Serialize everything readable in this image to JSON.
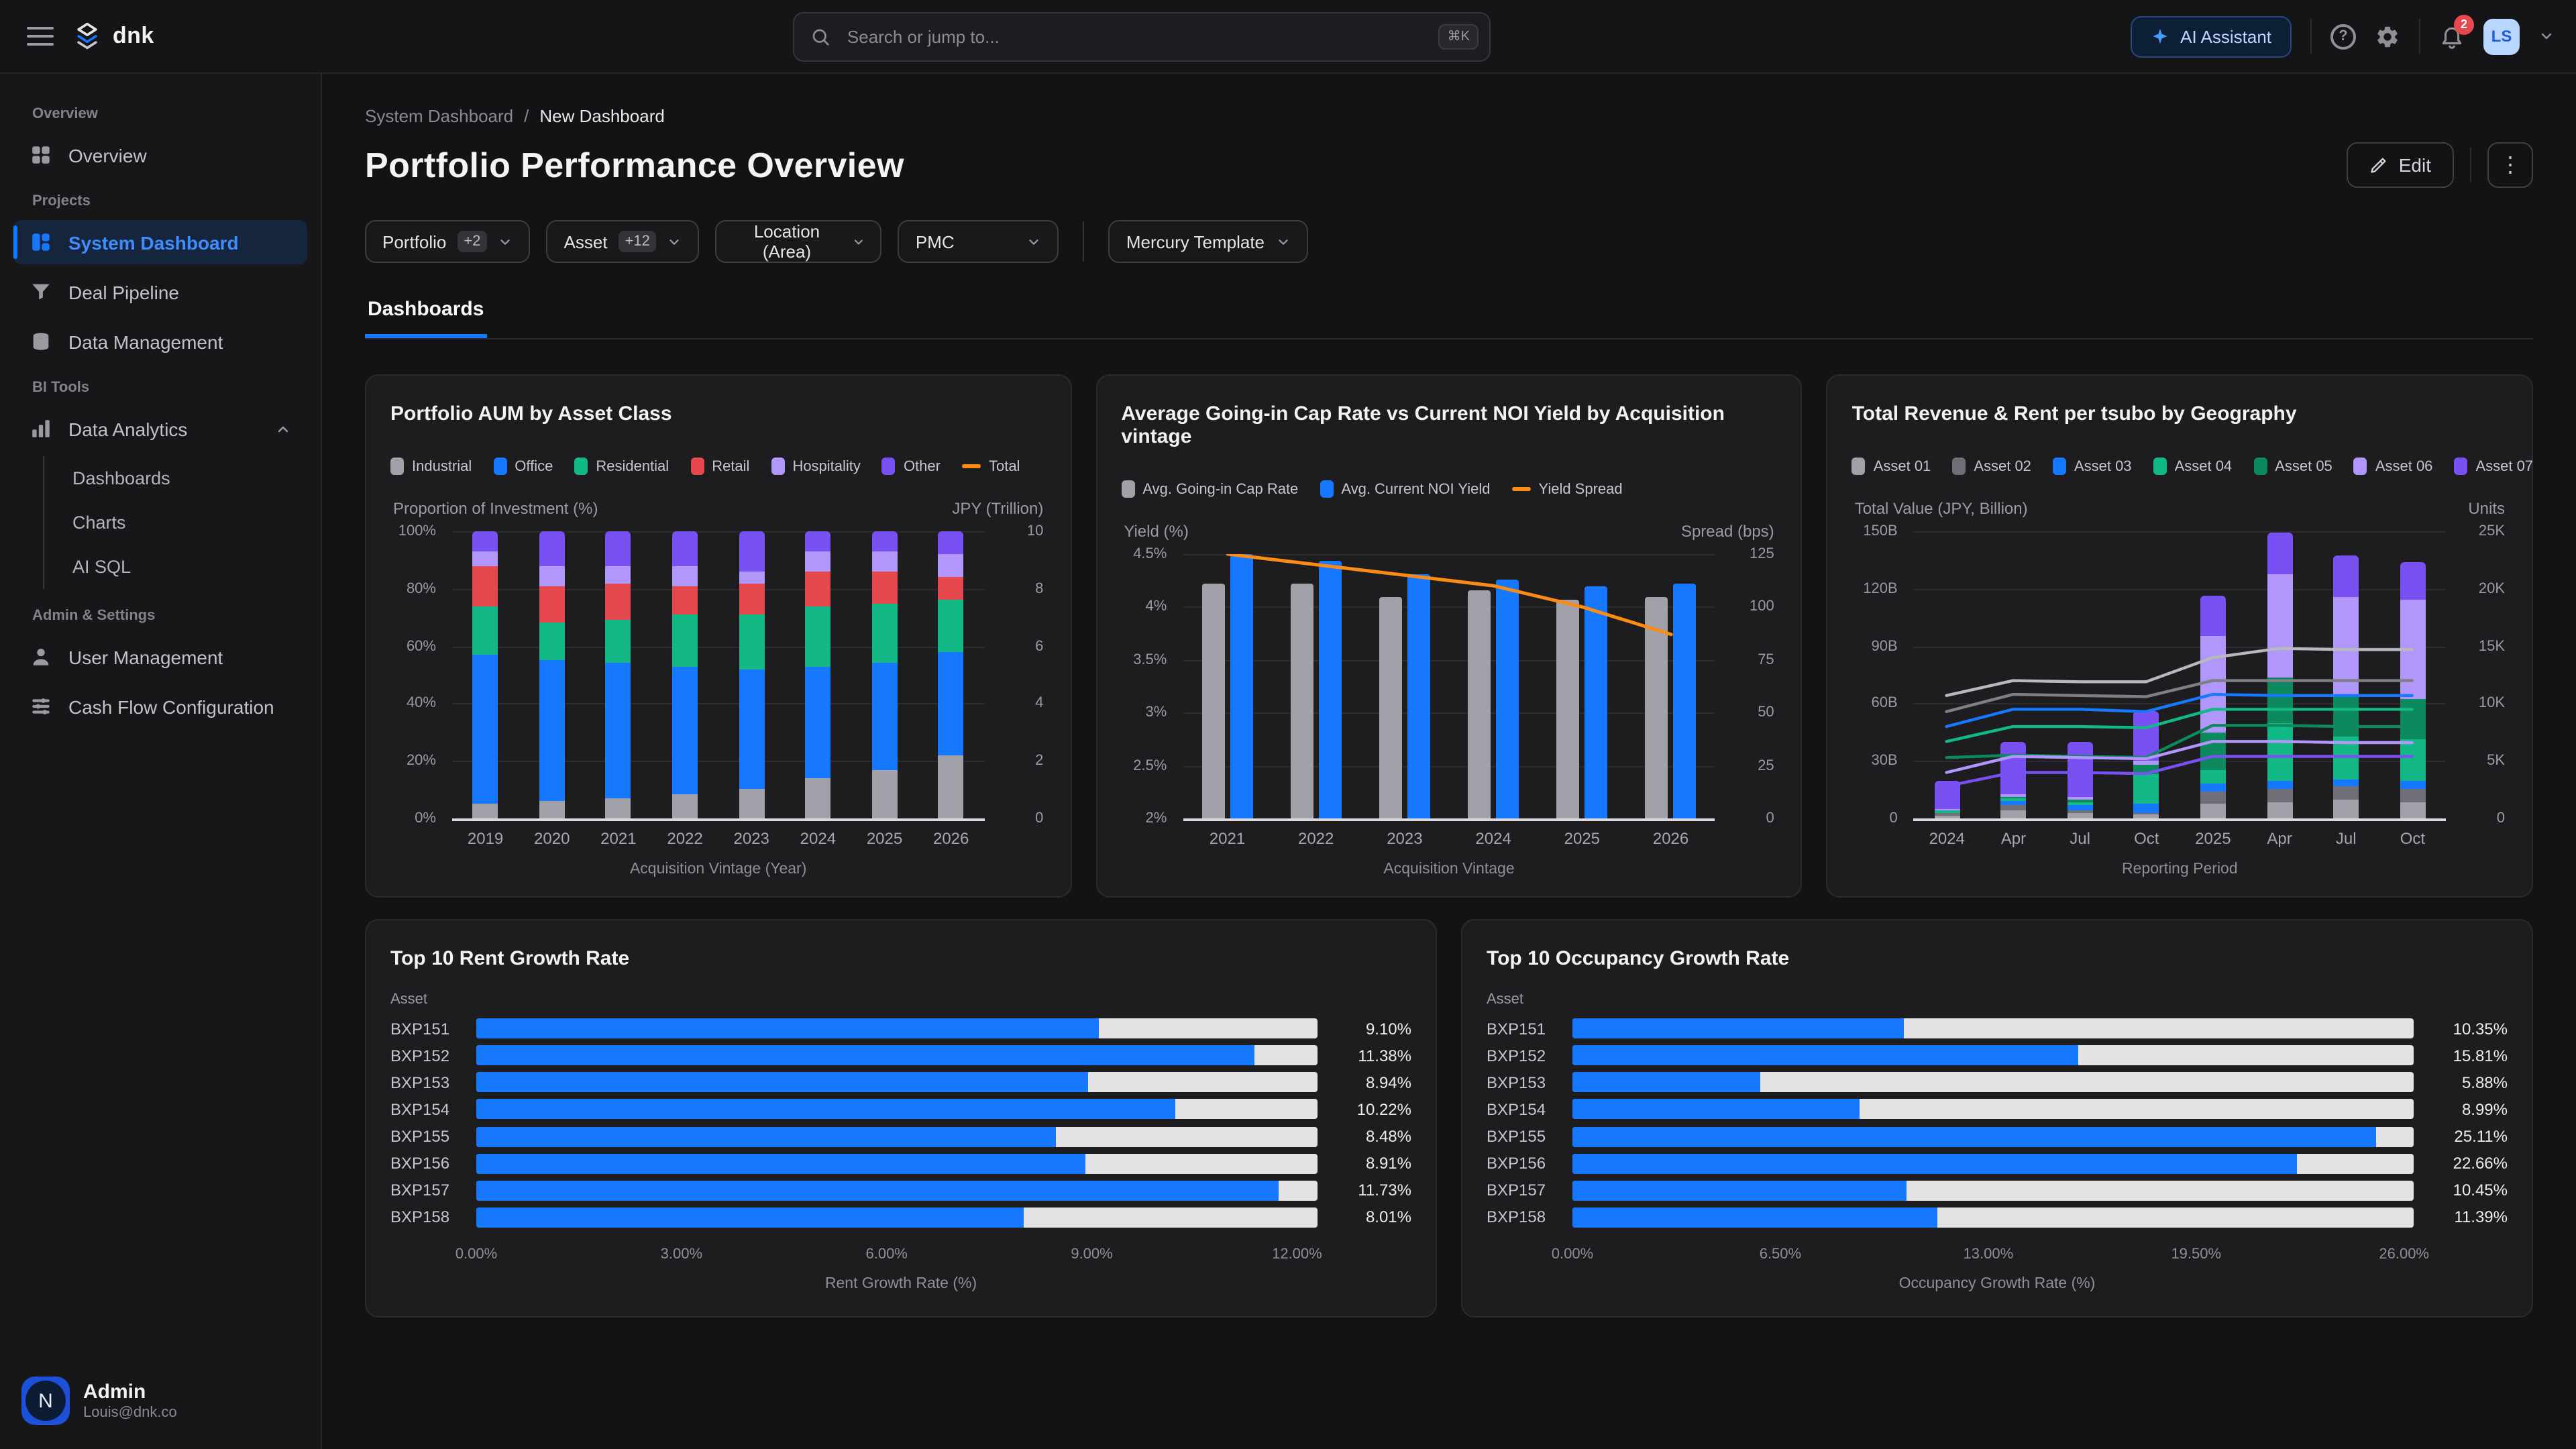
{
  "topbar": {
    "brand": "dnk",
    "search": {
      "placeholder": "Search or jump to...",
      "shortcut": "⌘K"
    },
    "ai_button": "AI Assistant",
    "help_glyph": "?",
    "notifications_count": "2",
    "avatar_initials": "LS",
    "kebab_glyph": "⋮"
  },
  "sidebar": {
    "sections": [
      {
        "label": "Overview",
        "items": [
          {
            "label": "Overview"
          }
        ]
      },
      {
        "label": "Projects",
        "items": [
          {
            "label": "System Dashboard",
            "active": true
          },
          {
            "label": "Deal Pipeline"
          },
          {
            "label": "Data Management"
          }
        ]
      },
      {
        "label": "BI Tools",
        "items": [
          {
            "label": "Data Analytics",
            "expanded": true,
            "children": [
              "Dashboards",
              "Charts",
              "AI SQL"
            ]
          }
        ]
      },
      {
        "label": "Admin & Settings",
        "items": [
          {
            "label": "User Management"
          },
          {
            "label": "Cash Flow Configuration"
          }
        ]
      }
    ],
    "user": {
      "name": "Admin",
      "email": "Louis@dnk.co",
      "avatar_letter": "N"
    }
  },
  "page": {
    "breadcrumb": {
      "parent": "System Dashboard",
      "separator": "/",
      "current": "New Dashboard"
    },
    "title": "Portfolio Performance Overview",
    "edit_label": "Edit",
    "filters": [
      {
        "label": "Portfolio",
        "badge": "+2"
      },
      {
        "label": "Asset",
        "badge": "+12"
      },
      {
        "label": "Location (Area)"
      },
      {
        "label": "PMC"
      }
    ],
    "template_filter": {
      "label": "Mercury Template"
    },
    "tab": "Dashboards"
  },
  "colors": {
    "accent": "#1677ff",
    "orange": "#fa8c16",
    "red_badge": "#e5484d",
    "track": "#e3e3e6"
  },
  "chart_data": [
    {
      "type": "bar",
      "variant": "stacked-percent",
      "title": "Portfolio AUM by Asset Class",
      "xlabel": "Acquisition Vintage (Year)",
      "left_axis": {
        "label": "Proportion of Investment (%)",
        "ticks": [
          "100%",
          "80%",
          "60%",
          "40%",
          "20%",
          "0%"
        ]
      },
      "right_axis": {
        "label": "JPY (Trillion)",
        "ticks": [
          "10",
          "8",
          "6",
          "4",
          "2",
          "0"
        ]
      },
      "categories": [
        "2019",
        "2020",
        "2021",
        "2022",
        "2023",
        "2024",
        "2025",
        "2026"
      ],
      "series": [
        {
          "name": "Industrial",
          "color": "#a1a1aa",
          "values": [
            5,
            6,
            7,
            8.5,
            10.5,
            14,
            17,
            22
          ]
        },
        {
          "name": "Office",
          "color": "#1677ff",
          "values": [
            52,
            49,
            47,
            44.5,
            41.5,
            39,
            37,
            36
          ]
        },
        {
          "name": "Residential",
          "color": "#12b886",
          "values": [
            17,
            13,
            15,
            18,
            19,
            21,
            21,
            18
          ]
        },
        {
          "name": "Retail",
          "color": "#e5484d",
          "values": [
            14,
            13,
            13,
            10,
            11,
            12,
            11,
            8
          ]
        },
        {
          "name": "Hospitality",
          "color": "#b197fc",
          "values": [
            5,
            7,
            6,
            7,
            4,
            7,
            7,
            8
          ]
        },
        {
          "name": "Other",
          "color": "#7950f2",
          "values": [
            7,
            12,
            12,
            12,
            14,
            7,
            7,
            8
          ]
        }
      ],
      "line_legend": {
        "name": "Total",
        "color": "#fa8c16"
      }
    },
    {
      "type": "bar",
      "variant": "grouped-line",
      "title": "Average Going-in Cap Rate vs Current NOI Yield by Acquisition vintage",
      "xlabel": "Acquisition Vintage",
      "left_axis": {
        "label": "Yield (%)",
        "ticks": [
          "4.5%",
          "4%",
          "3.5%",
          "3%",
          "2.5%",
          "2%"
        ],
        "min": 2,
        "max": 4.5
      },
      "right_axis": {
        "label": "Spread (bps)",
        "ticks": [
          "125",
          "100",
          "75",
          "50",
          "25",
          "0"
        ],
        "min": 0,
        "max": 125
      },
      "categories": [
        "2021",
        "2022",
        "2023",
        "2024",
        "2025",
        "2026"
      ],
      "series": [
        {
          "name": "Avg. Going-in Cap Rate",
          "color": "#a1a1aa",
          "values": [
            4.22,
            4.22,
            4.09,
            4.16,
            4.07,
            4.1
          ]
        },
        {
          "name": "Avg. Current NOI Yield",
          "color": "#1677ff",
          "values": [
            4.5,
            4.44,
            4.31,
            4.26,
            4.19,
            4.22
          ]
        }
      ],
      "line": {
        "name": "Yield Spread",
        "color": "#fa8c16",
        "axis": "right",
        "values": [
          125,
          120,
          115,
          110,
          100,
          87
        ]
      }
    },
    {
      "type": "bar",
      "variant": "stacked-line",
      "title": "Total Revenue & Rent per tsubo by Geography",
      "xlabel": "Reporting Period",
      "left_axis": {
        "label": "Total Value (JPY, Billion)",
        "ticks": [
          "150B",
          "120B",
          "90B",
          "60B",
          "30B",
          "0"
        ],
        "max": 150
      },
      "right_axis": {
        "label": "Units",
        "ticks": [
          "25K",
          "20K",
          "15K",
          "10K",
          "5K",
          "0"
        ],
        "max": 25
      },
      "categories": [
        "2024",
        "Apr",
        "Jul",
        "Oct",
        "2025",
        "Apr",
        "Jul",
        "Oct"
      ],
      "series": [
        {
          "name": "Asset 01",
          "color": "#a1a1aa",
          "values": [
            1.5,
            4,
            2.5,
            2,
            8,
            8.5,
            9.5,
            8.5
          ]
        },
        {
          "name": "Asset 02",
          "color": "#6f6f78",
          "values": [
            1,
            3,
            1.5,
            1,
            6,
            7,
            7,
            7
          ]
        },
        {
          "name": "Asset 03",
          "color": "#1677ff",
          "values": [
            0.5,
            2,
            3,
            5,
            4,
            4,
            4,
            4
          ]
        },
        {
          "name": "Asset 04",
          "color": "#12b886",
          "values": [
            1,
            1.5,
            1.5,
            15,
            7,
            30,
            22,
            22
          ]
        },
        {
          "name": "Asset 05",
          "color": "#0c8a5e",
          "values": [
            0.5,
            1,
            1,
            5,
            20,
            24,
            21,
            21
          ]
        },
        {
          "name": "Asset 06",
          "color": "#b197fc",
          "values": [
            0.5,
            1,
            1.5,
            2,
            50,
            54,
            52,
            52
          ]
        },
        {
          "name": "Asset 07",
          "color": "#7950f2",
          "values": [
            14.5,
            27.5,
            29,
            26,
            21.5,
            22,
            22,
            19.5
          ]
        }
      ],
      "lines": [
        {
          "color": "#b8b8bf",
          "values": [
            10.7,
            12,
            11.9,
            11.9,
            14,
            14.8,
            14.7,
            14.7
          ]
        },
        {
          "color": "#7f7f87",
          "values": [
            9.3,
            10.8,
            10.7,
            10.6,
            12,
            12,
            12,
            12
          ]
        },
        {
          "color": "#1677ff",
          "values": [
            8,
            9.5,
            9.5,
            9.3,
            10.8,
            10.7,
            10.7,
            10.7
          ]
        },
        {
          "color": "#12b886",
          "values": [
            6.7,
            8,
            8,
            7.9,
            9.5,
            9.5,
            9.5,
            9.5
          ]
        },
        {
          "color": "#0c8a5e",
          "values": [
            5.3,
            5.5,
            5.4,
            5.3,
            8.1,
            8.1,
            8,
            8
          ]
        },
        {
          "color": "#b197fc",
          "values": [
            4,
            5.4,
            5.3,
            5.2,
            6.7,
            6.7,
            6.6,
            6.6
          ]
        },
        {
          "color": "#7950f2",
          "values": [
            2.8,
            4,
            4,
            3.9,
            5.4,
            5.4,
            5.4,
            5.4
          ]
        }
      ]
    },
    {
      "type": "hbar",
      "title": "Top 10 Rent Growth Rate",
      "col_label": "Asset",
      "xlabel": "Rent Growth Rate (%)",
      "scale_max": 12.3,
      "bar_color": "#1677ff",
      "ticks": [
        {
          "label": "0.00%",
          "value": 0
        },
        {
          "label": "3.00%",
          "value": 3
        },
        {
          "label": "6.00%",
          "value": 6
        },
        {
          "label": "9.00%",
          "value": 9
        },
        {
          "label": "12.00%",
          "value": 12
        }
      ],
      "rows": [
        {
          "asset": "BXP151",
          "value": 9.1,
          "label": "9.10%"
        },
        {
          "asset": "BXP152",
          "value": 11.38,
          "label": "11.38%"
        },
        {
          "asset": "BXP153",
          "value": 8.94,
          "label": "8.94%"
        },
        {
          "asset": "BXP154",
          "value": 10.22,
          "label": "10.22%"
        },
        {
          "asset": "BXP155",
          "value": 8.48,
          "label": "8.48%"
        },
        {
          "asset": "BXP156",
          "value": 8.91,
          "label": "8.91%"
        },
        {
          "asset": "BXP157",
          "value": 11.73,
          "label": "11.73%"
        },
        {
          "asset": "BXP158",
          "value": 8.01,
          "label": "8.01%"
        }
      ]
    },
    {
      "type": "hbar",
      "title": "Top 10 Occupancy Growth Rate",
      "col_label": "Asset",
      "xlabel": "Occupancy Growth Rate (%)",
      "scale_max": 26.3,
      "bar_color": "#1677ff",
      "ticks": [
        {
          "label": "0.00%",
          "value": 0
        },
        {
          "label": "6.50%",
          "value": 6.5
        },
        {
          "label": "13.00%",
          "value": 13
        },
        {
          "label": "19.50%",
          "value": 19.5
        },
        {
          "label": "26.00%",
          "value": 26
        }
      ],
      "rows": [
        {
          "asset": "BXP151",
          "value": 10.35,
          "label": "10.35%"
        },
        {
          "asset": "BXP152",
          "value": 15.81,
          "label": "15.81%"
        },
        {
          "asset": "BXP153",
          "value": 5.88,
          "label": "5.88%"
        },
        {
          "asset": "BXP154",
          "value": 8.99,
          "label": "8.99%"
        },
        {
          "asset": "BXP155",
          "value": 25.11,
          "label": "25.11%"
        },
        {
          "asset": "BXP156",
          "value": 22.66,
          "label": "22.66%"
        },
        {
          "asset": "BXP157",
          "value": 10.45,
          "label": "10.45%"
        },
        {
          "asset": "BXP158",
          "value": 11.39,
          "label": "11.39%"
        }
      ]
    }
  ]
}
